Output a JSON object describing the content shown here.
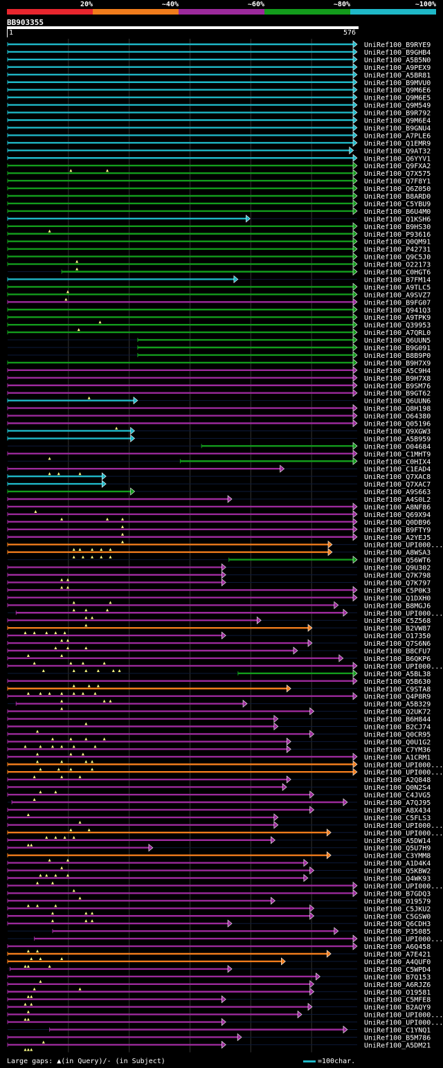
{
  "chart_data": {
    "type": "alignment",
    "legend": {
      "labels": [
        "20%",
        "~40%",
        "~60%",
        "~80%",
        "~100%"
      ],
      "colors": [
        "#e8262e",
        "#f07c1c",
        "#9c2a9c",
        "#139c1c",
        "#1fb8c8"
      ]
    },
    "query": {
      "name": "BB903355",
      "start": 1,
      "end": 576
    },
    "xrange": [
      1,
      576
    ],
    "hits": [
      {
        "name": "UniRef100_B9RYE9",
        "s": 1,
        "e": 576,
        "c": 4
      },
      {
        "name": "UniRef100_B9GHB4",
        "s": 1,
        "e": 576,
        "c": 4
      },
      {
        "name": "UniRef100_A5B5N0",
        "s": 1,
        "e": 576,
        "c": 4
      },
      {
        "name": "UniRef100_A9PEX9",
        "s": 1,
        "e": 576,
        "c": 4
      },
      {
        "name": "UniRef100_A5BR81",
        "s": 1,
        "e": 576,
        "c": 4
      },
      {
        "name": "UniRef100_B9MVU0",
        "s": 1,
        "e": 576,
        "c": 4
      },
      {
        "name": "UniRef100_Q9M6E6",
        "s": 1,
        "e": 576,
        "c": 4
      },
      {
        "name": "UniRef100_Q9M6E5",
        "s": 1,
        "e": 576,
        "c": 4
      },
      {
        "name": "UniRef100_Q9M549",
        "s": 1,
        "e": 576,
        "c": 4
      },
      {
        "name": "UniRef100_B9R792",
        "s": 1,
        "e": 576,
        "c": 4
      },
      {
        "name": "UniRef100_Q9M6E4",
        "s": 1,
        "e": 576,
        "c": 4
      },
      {
        "name": "UniRef100_B9GNU4",
        "s": 1,
        "e": 576,
        "c": 4
      },
      {
        "name": "UniRef100_A7PLE6",
        "s": 1,
        "e": 576,
        "c": 4
      },
      {
        "name": "UniRef100_Q1EMR9",
        "s": 1,
        "e": 576,
        "c": 4
      },
      {
        "name": "UniRef100_Q9AT32",
        "s": 1,
        "e": 570,
        "c": 4
      },
      {
        "name": "UniRef100_Q6YYV1",
        "s": 1,
        "e": 576,
        "c": 4
      },
      {
        "name": "UniRef100_Q9FXA2",
        "s": 1,
        "e": 576,
        "c": 3,
        "g": [
          105,
          165
        ]
      },
      {
        "name": "UniRef100_Q7X575",
        "s": 1,
        "e": 576,
        "c": 3
      },
      {
        "name": "UniRef100_Q7F8Y1",
        "s": 1,
        "e": 576,
        "c": 3
      },
      {
        "name": "UniRef100_Q6Z050",
        "s": 1,
        "e": 576,
        "c": 3
      },
      {
        "name": "UniRef100_B8ARD0",
        "s": 1,
        "e": 576,
        "c": 3
      },
      {
        "name": "UniRef100_C5YBU9",
        "s": 1,
        "e": 576,
        "c": 3
      },
      {
        "name": "UniRef100_B6U4M0",
        "s": 1,
        "e": 576,
        "c": 3
      },
      {
        "name": "UniRef100_Q1KSH6",
        "s": 1,
        "e": 400,
        "c": 4
      },
      {
        "name": "UniRef100_B9HS30",
        "s": 1,
        "e": 576,
        "c": 3,
        "g": [
          70
        ]
      },
      {
        "name": "UniRef100_P93616",
        "s": 1,
        "e": 576,
        "c": 3
      },
      {
        "name": "UniRef100_Q0QM91",
        "s": 1,
        "e": 576,
        "c": 3
      },
      {
        "name": "UniRef100_P42731",
        "s": 1,
        "e": 576,
        "c": 3
      },
      {
        "name": "UniRef100_Q9C5J0",
        "s": 1,
        "e": 576,
        "c": 3,
        "g": [
          115
        ]
      },
      {
        "name": "UniRef100_O22173",
        "s": 1,
        "e": 576,
        "c": 3,
        "g": [
          115
        ]
      },
      {
        "name": "UniRef100_C0HGT6",
        "s": 90,
        "e": 576,
        "c": 3
      },
      {
        "name": "UniRef100_B7FM14",
        "s": 1,
        "e": 380,
        "c": 4
      },
      {
        "name": "UniRef100_A9TLC5",
        "s": 1,
        "e": 576,
        "c": 3,
        "g": [
          100
        ]
      },
      {
        "name": "UniRef100_A9SVZ7",
        "s": 1,
        "e": 576,
        "c": 3,
        "g": [
          97
        ]
      },
      {
        "name": "UniRef100_B9FG07",
        "s": 1,
        "e": 576,
        "c": 2
      },
      {
        "name": "UniRef100_Q941Q3",
        "s": 1,
        "e": 576,
        "c": 3
      },
      {
        "name": "UniRef100_A9TPK9",
        "s": 1,
        "e": 576,
        "c": 3,
        "g": [
          153
        ]
      },
      {
        "name": "UniRef100_Q39953",
        "s": 1,
        "e": 576,
        "c": 3,
        "g": [
          118
        ]
      },
      {
        "name": "UniRef100_A7QRL0",
        "s": 1,
        "e": 576,
        "c": 3
      },
      {
        "name": "UniRef100_Q6UUN5",
        "s": 215,
        "e": 576,
        "c": 3
      },
      {
        "name": "UniRef100_B9G091",
        "s": 215,
        "e": 576,
        "c": 3
      },
      {
        "name": "UniRef100_B8B9P0",
        "s": 215,
        "e": 576,
        "c": 3
      },
      {
        "name": "UniRef100_B9H7X9",
        "s": 1,
        "e": 576,
        "c": 3
      },
      {
        "name": "UniRef100_A5C9H4",
        "s": 1,
        "e": 576,
        "c": 2
      },
      {
        "name": "UniRef100_B9H7X8",
        "s": 1,
        "e": 576,
        "c": 2
      },
      {
        "name": "UniRef100_B9SM76",
        "s": 1,
        "e": 576,
        "c": 2
      },
      {
        "name": "UniRef100_B9GT62",
        "s": 1,
        "e": 576,
        "c": 2,
        "g": [
          135
        ]
      },
      {
        "name": "UniRef100_Q6UUN6",
        "s": 1,
        "e": 215,
        "c": 4
      },
      {
        "name": "UniRef100_Q8H198",
        "s": 1,
        "e": 576,
        "c": 2
      },
      {
        "name": "UniRef100_O64380",
        "s": 1,
        "e": 576,
        "c": 2
      },
      {
        "name": "UniRef100_Q05196",
        "s": 1,
        "e": 576,
        "c": 2,
        "g": [
          180
        ]
      },
      {
        "name": "UniRef100_Q9XGW3",
        "s": 1,
        "e": 210,
        "c": 4
      },
      {
        "name": "UniRef100_A5B959",
        "s": 1,
        "e": 210,
        "c": 4
      },
      {
        "name": "UniRef100_O04684",
        "s": 320,
        "e": 576,
        "c": 3
      },
      {
        "name": "UniRef100_C1MHT9",
        "s": 1,
        "e": 576,
        "c": 2,
        "g": [
          70
        ]
      },
      {
        "name": "UniRef100_C0HIX4",
        "s": 285,
        "e": 576,
        "c": 3
      },
      {
        "name": "UniRef100_C1EAD4",
        "s": 1,
        "e": 456,
        "c": 2,
        "g": [
          70,
          85,
          120
        ]
      },
      {
        "name": "UniRef100_Q7XAC8",
        "s": 1,
        "e": 163,
        "c": 4
      },
      {
        "name": "UniRef100_Q7XAC7",
        "s": 1,
        "e": 163,
        "c": 4
      },
      {
        "name": "UniRef100_A9S663",
        "s": 1,
        "e": 210,
        "c": 3
      },
      {
        "name": "UniRef100_A4S0L2",
        "s": 1,
        "e": 370,
        "c": 2
      },
      {
        "name": "UniRef100_A8NF86",
        "s": 1,
        "e": 576,
        "c": 2,
        "g": [
          47
        ]
      },
      {
        "name": "UniRef100_Q69X94",
        "s": 1,
        "e": 576,
        "c": 2,
        "g": [
          90,
          165,
          190
        ]
      },
      {
        "name": "UniRef100_Q0DB96",
        "s": 1,
        "e": 576,
        "c": 2,
        "g": [
          190
        ]
      },
      {
        "name": "UniRef100_B9FTY9",
        "s": 1,
        "e": 576,
        "c": 2,
        "g": [
          190
        ]
      },
      {
        "name": "UniRef100_A2YEJ5",
        "s": 1,
        "e": 576,
        "c": 2,
        "g": [
          190
        ]
      },
      {
        "name": "UniRef100_UPI000...",
        "s": 1,
        "e": 535,
        "c": 1,
        "g": [
          110,
          120,
          140,
          155,
          170
        ]
      },
      {
        "name": "UniRef100_A8WSA3",
        "s": 1,
        "e": 535,
        "c": 1,
        "g": [
          110,
          125,
          140,
          155,
          170
        ]
      },
      {
        "name": "UniRef100_Q56WT6",
        "s": 365,
        "e": 576,
        "c": 3
      },
      {
        "name": "UniRef100_Q9U302",
        "s": 1,
        "e": 360,
        "c": 2
      },
      {
        "name": "UniRef100_Q7K798",
        "s": 1,
        "e": 360,
        "c": 2,
        "g": [
          90,
          100
        ]
      },
      {
        "name": "UniRef100_Q7K797",
        "s": 1,
        "e": 360,
        "c": 2,
        "g": [
          90,
          100
        ]
      },
      {
        "name": "UniRef100_C5P0K3",
        "s": 1,
        "e": 576,
        "c": 2
      },
      {
        "name": "UniRef100_Q1DXH0",
        "s": 1,
        "e": 576,
        "c": 2,
        "g": [
          110,
          170
        ]
      },
      {
        "name": "UniRef100_B8MGJ6",
        "s": 1,
        "e": 545,
        "c": 2,
        "g": [
          110,
          130,
          165
        ]
      },
      {
        "name": "UniRef100_UPI000...",
        "s": 15,
        "e": 560,
        "c": 2,
        "g": [
          130,
          140
        ]
      },
      {
        "name": "UniRef100_C5Z568",
        "s": 1,
        "e": 418,
        "c": 2,
        "g": [
          130
        ]
      },
      {
        "name": "UniRef100_B2VW87",
        "s": 1,
        "e": 502,
        "c": 1,
        "g": [
          30,
          45,
          65,
          80,
          95
        ]
      },
      {
        "name": "UniRef100_O17350",
        "s": 1,
        "e": 360,
        "c": 2,
        "g": [
          90,
          100
        ]
      },
      {
        "name": "UniRef100_Q7S6N6",
        "s": 1,
        "e": 502,
        "c": 2,
        "g": [
          80,
          100,
          130
        ]
      },
      {
        "name": "UniRef100_B8CFU7",
        "s": 1,
        "e": 478,
        "c": 2,
        "g": [
          35,
          90
        ]
      },
      {
        "name": "UniRef100_B6QKP6",
        "s": 1,
        "e": 553,
        "c": 2,
        "g": [
          45,
          105,
          125,
          160
        ]
      },
      {
        "name": "UniRef100_UPI000...",
        "s": 1,
        "e": 576,
        "c": 2,
        "g": [
          60,
          110,
          130,
          150,
          175,
          185
        ]
      },
      {
        "name": "UniRef100_A5BL38",
        "s": 380,
        "e": 576,
        "c": 3
      },
      {
        "name": "UniRef100_Q5B630",
        "s": 1,
        "e": 576,
        "c": 2,
        "g": [
          110,
          135,
          150
        ]
      },
      {
        "name": "UniRef100_C9STA8",
        "s": 1,
        "e": 467,
        "c": 1,
        "g": [
          35,
          55,
          70,
          90,
          110,
          125,
          145
        ]
      },
      {
        "name": "UniRef100_Q4P8R9",
        "s": 1,
        "e": 576,
        "c": 2,
        "g": [
          90,
          160,
          170
        ]
      },
      {
        "name": "UniRef100_A5B329",
        "s": 15,
        "e": 395,
        "c": 2,
        "g": [
          90
        ]
      },
      {
        "name": "UniRef100_Q2UK72",
        "s": 1,
        "e": 505,
        "c": 2
      },
      {
        "name": "UniRef100_B6H844",
        "s": 1,
        "e": 446,
        "c": 2,
        "g": [
          130
        ]
      },
      {
        "name": "UniRef100_B2CJ74",
        "s": 1,
        "e": 446,
        "c": 2,
        "g": [
          50
        ]
      },
      {
        "name": "UniRef100_Q0CR95",
        "s": 1,
        "e": 505,
        "c": 2,
        "g": [
          75,
          105,
          130,
          160
        ]
      },
      {
        "name": "UniRef100_Q0U1G2",
        "s": 1,
        "e": 467,
        "c": 2,
        "g": [
          30,
          55,
          75,
          90,
          110,
          145
        ]
      },
      {
        "name": "UniRef100_C7YM36",
        "s": 1,
        "e": 467,
        "c": 2,
        "g": [
          50,
          105,
          125
        ]
      },
      {
        "name": "UniRef100_A1CRM1",
        "s": 1,
        "e": 576,
        "c": 2,
        "g": [
          50,
          90,
          130,
          140
        ]
      },
      {
        "name": "UniRef100_UPI000...",
        "s": 1,
        "e": 576,
        "c": 1,
        "g": [
          55,
          85,
          105,
          140
        ]
      },
      {
        "name": "UniRef100_UPI000...",
        "s": 1,
        "e": 576,
        "c": 1,
        "g": [
          45,
          90,
          120
        ]
      },
      {
        "name": "UniRef100_A2Q848",
        "s": 1,
        "e": 467,
        "c": 2
      },
      {
        "name": "UniRef100_Q0N2S4",
        "s": 1,
        "e": 460,
        "c": 2,
        "g": [
          55,
          80
        ]
      },
      {
        "name": "UniRef100_C4JVG5",
        "s": 1,
        "e": 505,
        "c": 2,
        "g": [
          45
        ]
      },
      {
        "name": "UniRef100_A7QJ95",
        "s": 8,
        "e": 560,
        "c": 2
      },
      {
        "name": "UniRef100_A8X434",
        "s": 1,
        "e": 505,
        "c": 2,
        "g": [
          35
        ]
      },
      {
        "name": "UniRef100_C5FLS3",
        "s": 1,
        "e": 446,
        "c": 2,
        "g": [
          120
        ]
      },
      {
        "name": "UniRef100_UPI000...",
        "s": 1,
        "e": 446,
        "c": 2,
        "g": [
          105,
          135
        ]
      },
      {
        "name": "UniRef100_UPI000...",
        "s": 1,
        "e": 533,
        "c": 1,
        "g": [
          65,
          80,
          95,
          110
        ]
      },
      {
        "name": "UniRef100_A5DW14",
        "s": 1,
        "e": 441,
        "c": 2,
        "g": [
          35,
          40
        ]
      },
      {
        "name": "UniRef100_Q5U7H9",
        "s": 1,
        "e": 240,
        "c": 2
      },
      {
        "name": "UniRef100_C3YMM8",
        "s": 1,
        "e": 533,
        "c": 1,
        "g": [
          70,
          100
        ]
      },
      {
        "name": "UniRef100_A1D4K4",
        "s": 1,
        "e": 495,
        "c": 2,
        "g": [
          90
        ]
      },
      {
        "name": "UniRef100_Q5KBW2",
        "s": 1,
        "e": 505,
        "c": 2,
        "g": [
          55,
          65,
          80,
          100
        ]
      },
      {
        "name": "UniRef100_Q4WK93",
        "s": 1,
        "e": 495,
        "c": 2,
        "g": [
          50,
          75
        ]
      },
      {
        "name": "UniRef100_UPI000...",
        "s": 1,
        "e": 576,
        "c": 2,
        "g": [
          110
        ]
      },
      {
        "name": "UniRef100_B7GDQ3",
        "s": 1,
        "e": 576,
        "c": 2,
        "g": [
          120
        ]
      },
      {
        "name": "UniRef100_O19579",
        "s": 1,
        "e": 441,
        "c": 2,
        "g": [
          35,
          50,
          80
        ]
      },
      {
        "name": "UniRef100_C5JKU2",
        "s": 1,
        "e": 505,
        "c": 2,
        "g": [
          75,
          130,
          140
        ]
      },
      {
        "name": "UniRef100_C5GSW0",
        "s": 1,
        "e": 505,
        "c": 2,
        "g": [
          75,
          130,
          140
        ]
      },
      {
        "name": "UniRef100_Q6CDH3",
        "s": 1,
        "e": 370,
        "c": 2
      },
      {
        "name": "UniRef100_P35085",
        "s": 75,
        "e": 545,
        "c": 2
      },
      {
        "name": "UniRef100_UPI000...",
        "s": 45,
        "e": 576,
        "c": 2
      },
      {
        "name": "UniRef100_A6Q458",
        "s": 1,
        "e": 576,
        "c": 2,
        "g": [
          35,
          50
        ]
      },
      {
        "name": "UniRef100_A7E421",
        "s": 1,
        "e": 533,
        "c": 1,
        "g": [
          40,
          55,
          90
        ]
      },
      {
        "name": "UniRef100_A4QUF0",
        "s": 1,
        "e": 458,
        "c": 1,
        "g": [
          30,
          35,
          70
        ]
      },
      {
        "name": "UniRef100_C5WPD4",
        "s": 5,
        "e": 370,
        "c": 2
      },
      {
        "name": "UniRef100_B7Q153",
        "s": 1,
        "e": 515,
        "c": 2,
        "g": [
          55
        ]
      },
      {
        "name": "UniRef100_A6RJZ6",
        "s": 1,
        "e": 505,
        "c": 2,
        "g": [
          45,
          120
        ]
      },
      {
        "name": "UniRef100_O19581",
        "s": 1,
        "e": 505,
        "c": 2,
        "g": [
          35,
          40
        ]
      },
      {
        "name": "UniRef100_C5MFE8",
        "s": 1,
        "e": 360,
        "c": 2,
        "g": [
          30,
          40
        ]
      },
      {
        "name": "UniRef100_B2AQY9",
        "s": 1,
        "e": 502,
        "c": 2,
        "g": [
          35
        ]
      },
      {
        "name": "UniRef100_UPI000...",
        "s": 1,
        "e": 485,
        "c": 2,
        "g": [
          30,
          35
        ]
      },
      {
        "name": "UniRef100_UPI000...",
        "s": 1,
        "e": 360,
        "c": 2
      },
      {
        "name": "UniRef100_C1YNQ1",
        "s": 70,
        "e": 560,
        "c": 2
      },
      {
        "name": "UniRef100_B5M786",
        "s": 1,
        "e": 386,
        "c": 2,
        "g": [
          60
        ]
      },
      {
        "name": "UniRef100_A5DM21",
        "s": 1,
        "e": 360,
        "c": 2,
        "g": [
          30,
          35,
          40
        ]
      }
    ],
    "footer": {
      "gap_text": "Large gaps: ▲(in Query)/- (in Subject)",
      "scale_text": "=100char."
    }
  }
}
